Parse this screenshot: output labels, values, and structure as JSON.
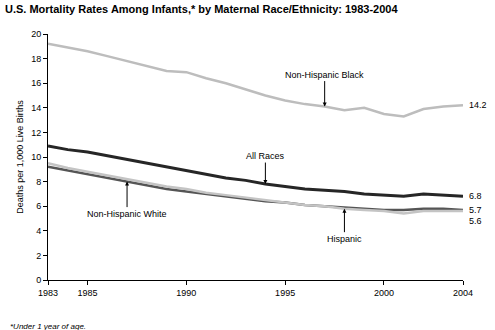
{
  "chart_data": {
    "type": "line",
    "title": "U.S. Mortality Rates Among Infants,* by Maternal Race/Ethnicity: 1983-2004",
    "y_label": "Deaths per 1,000 Live Births",
    "footnote": "*Under 1 year of age.",
    "x": [
      1983,
      1984,
      1985,
      1986,
      1987,
      1988,
      1989,
      1990,
      1991,
      1992,
      1993,
      1994,
      1995,
      1996,
      1997,
      1998,
      1999,
      2000,
      2001,
      2002,
      2003,
      2004
    ],
    "series": [
      {
        "name": "Non-Hispanic Black",
        "color": "#bdbdbd",
        "values": [
          19.2,
          18.9,
          18.6,
          18.2,
          17.8,
          17.4,
          17.0,
          16.9,
          16.4,
          16.0,
          15.5,
          15.0,
          14.6,
          14.3,
          14.1,
          13.8,
          14.0,
          13.5,
          13.3,
          13.9,
          14.1,
          14.2
        ]
      },
      {
        "name": "All Races",
        "color": "#262626",
        "values": [
          10.9,
          10.6,
          10.4,
          10.1,
          9.8,
          9.5,
          9.2,
          8.9,
          8.6,
          8.3,
          8.1,
          7.8,
          7.6,
          7.4,
          7.3,
          7.2,
          7.0,
          6.9,
          6.8,
          7.0,
          6.9,
          6.8
        ]
      },
      {
        "name": "Non-Hispanic White",
        "color": "#555555",
        "values": [
          9.2,
          8.9,
          8.6,
          8.3,
          8.0,
          7.7,
          7.4,
          7.2,
          7.0,
          6.8,
          6.6,
          6.4,
          6.3,
          6.1,
          6.0,
          5.9,
          5.8,
          5.7,
          5.7,
          5.8,
          5.8,
          5.7
        ]
      },
      {
        "name": "Hispanic",
        "color": "#c4c4c4",
        "values": [
          9.5,
          9.1,
          8.8,
          8.5,
          8.2,
          7.9,
          7.6,
          7.4,
          7.1,
          6.9,
          6.7,
          6.5,
          6.3,
          6.1,
          6.0,
          5.8,
          5.7,
          5.6,
          5.4,
          5.6,
          5.6,
          5.6
        ]
      }
    ],
    "annotations": [
      {
        "text": "Non-Hispanic Black",
        "x": 1997,
        "y": 14.1
      },
      {
        "text": "All Races",
        "x": 1994,
        "y": 7.8
      },
      {
        "text": "Non-Hispanic White",
        "x": 1987,
        "y": 8.0
      },
      {
        "text": "Hispanic",
        "x": 1998,
        "y": 5.8
      }
    ],
    "end_labels": [
      {
        "text": "14.2",
        "x": 2004,
        "y": 14.2
      },
      {
        "text": "6.8",
        "x": 2004,
        "y": 6.8
      },
      {
        "text": "5.7",
        "x": 2004,
        "y": 5.7
      },
      {
        "text": "5.6",
        "x": 2004,
        "y": 5.6
      }
    ],
    "xlim": [
      1983,
      2004
    ],
    "xticks": [
      1983,
      1985,
      1990,
      1995,
      2000,
      2004
    ],
    "ylim": [
      0,
      20
    ],
    "yticks": [
      0,
      2,
      4,
      6,
      8,
      10,
      12,
      14,
      16,
      18,
      20
    ],
    "grid": false,
    "legend": "none"
  }
}
